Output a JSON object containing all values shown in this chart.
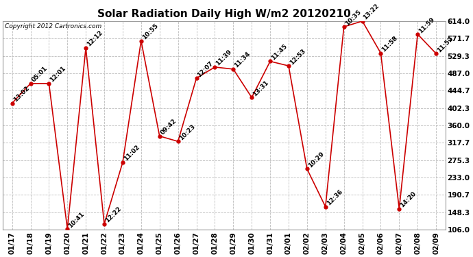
{
  "title": "Solar Radiation Daily High W/m2 20120210",
  "copyright": "Copyright 2012 Cartronics.com",
  "dates": [
    "01/17",
    "01/18",
    "01/19",
    "01/20",
    "01/21",
    "01/22",
    "01/23",
    "01/24",
    "01/25",
    "01/26",
    "01/27",
    "01/28",
    "01/29",
    "01/30",
    "01/31",
    "02/01",
    "02/02",
    "02/03",
    "02/04",
    "02/05",
    "02/06",
    "02/07",
    "02/08",
    "02/09"
  ],
  "values": [
    414,
    462,
    462,
    108,
    549,
    120,
    270,
    566,
    334,
    321,
    475,
    502,
    497,
    428,
    516,
    505,
    254,
    162,
    600,
    614,
    536,
    157,
    582,
    535
  ],
  "labels": [
    "13:02",
    "05:01",
    "12:01",
    "10:41",
    "12:12",
    "12:22",
    "11:02",
    "10:55",
    "09:42",
    "10:23",
    "12:07",
    "11:39",
    "11:34",
    "13:31",
    "11:45",
    "12:53",
    "10:29",
    "12:36",
    "10:35",
    "13:22",
    "11:58",
    "14:20",
    "11:59",
    "11:52"
  ],
  "ymin": 106.0,
  "ymax": 614.0,
  "yticks": [
    106.0,
    148.3,
    190.7,
    233.0,
    275.3,
    317.7,
    360.0,
    402.3,
    444.7,
    487.0,
    529.3,
    571.7,
    614.0
  ],
  "line_color": "#cc0000",
  "marker_color": "#cc0000",
  "bg_color": "#ffffff",
  "grid_color": "#bbbbbb",
  "title_fontsize": 11,
  "label_fontsize": 6.5,
  "axis_fontsize": 7.5,
  "copyright_fontsize": 6.5
}
